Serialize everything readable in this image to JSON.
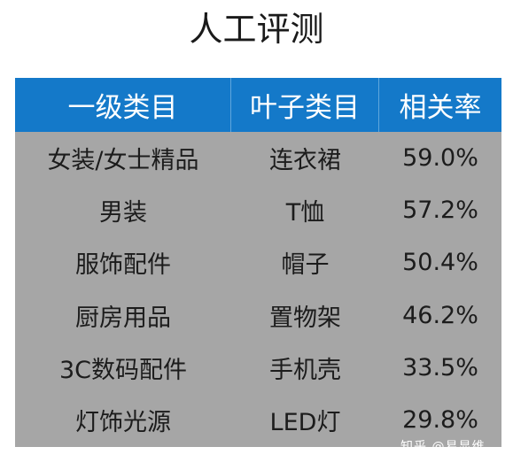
{
  "title": "人工评测",
  "table": {
    "headers": [
      "一级类目",
      "叶子类目",
      "相关率"
    ],
    "rows": [
      [
        "女装/女士精品",
        "连衣裙",
        "59.0%"
      ],
      [
        "男装",
        "T恤",
        "57.2%"
      ],
      [
        "服饰配件",
        "帽子",
        "50.4%"
      ],
      [
        "厨房用品",
        "置物架",
        "46.2%"
      ],
      [
        "3C数码配件",
        "手机壳",
        "33.5%"
      ],
      [
        "灯饰光源",
        "LED灯",
        "29.8%"
      ]
    ]
  },
  "watermark": "知乎 @易显维",
  "colors": {
    "header_bg": "#1479c9",
    "body_bg": "#a6a6a6"
  }
}
